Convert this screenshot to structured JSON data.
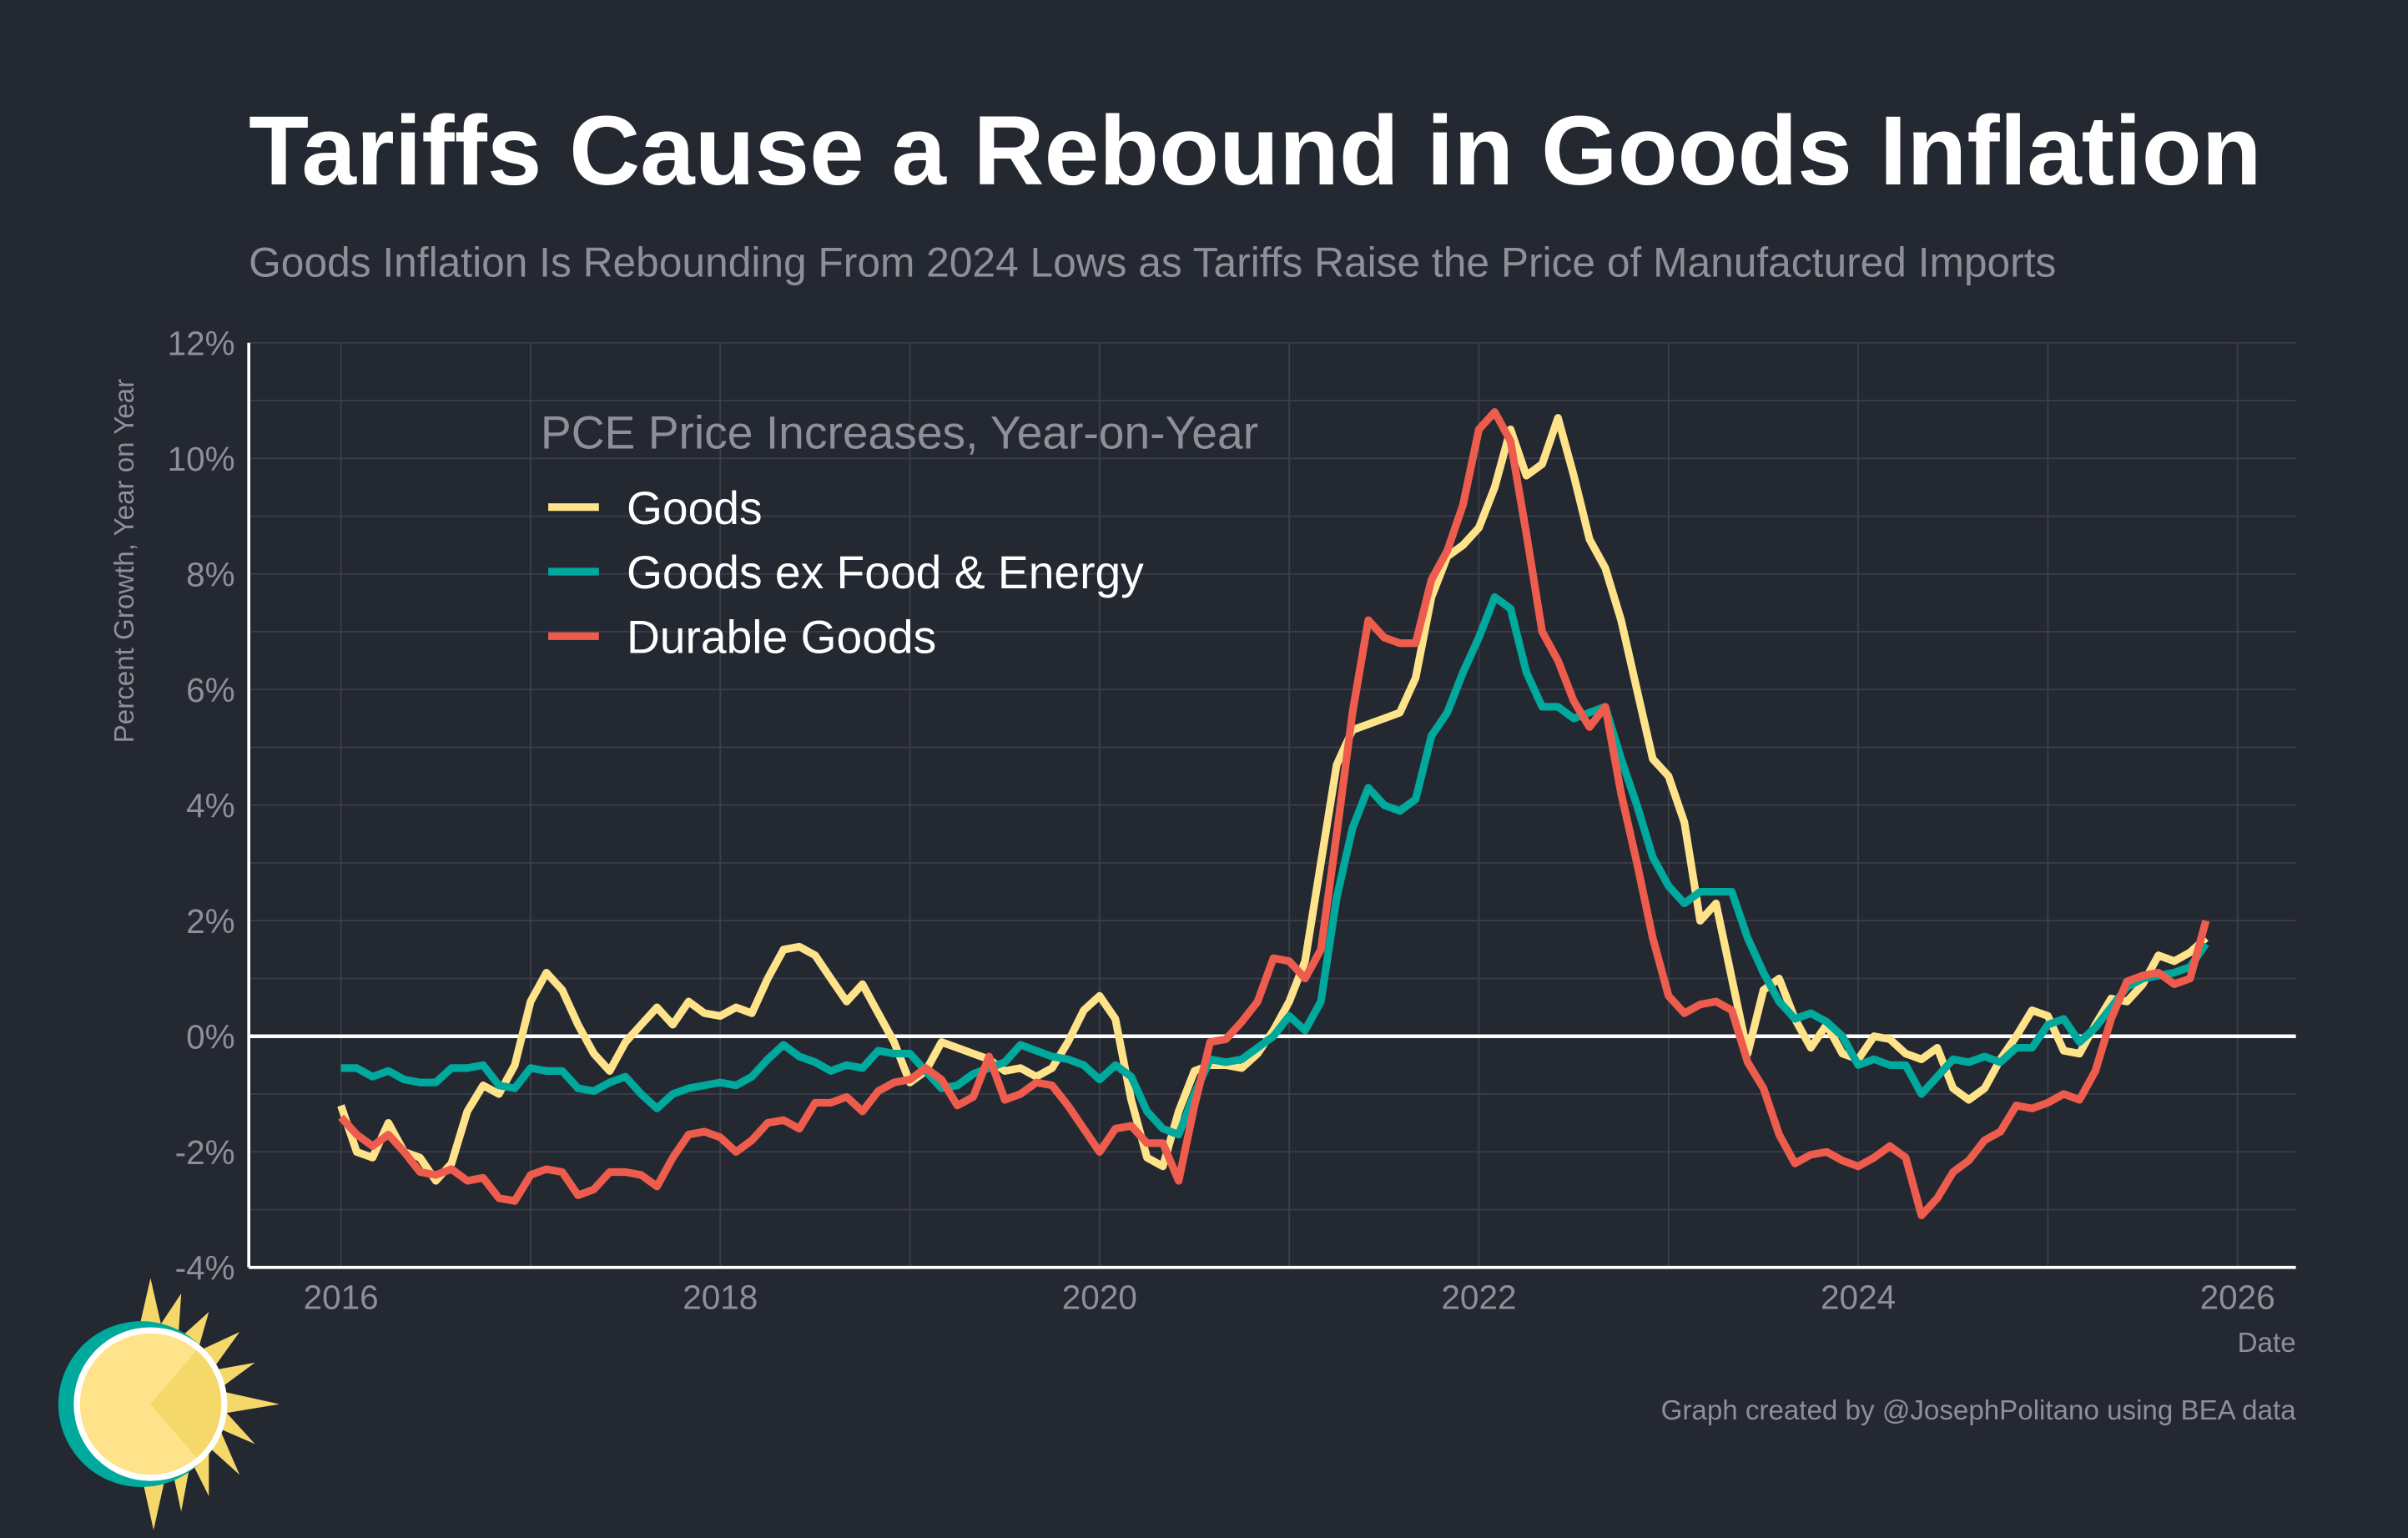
{
  "chart_data": {
    "type": "line",
    "title": "Tariffs Cause a Rebound in Goods Inflation",
    "subtitle": "Goods Inflation Is Rebounding From 2024 Lows as Tariffs Raise the Price of Manufactured Imports",
    "xlabel": "Date",
    "ylabel": "Percent Growth, Year on Year",
    "legend_title": "PCE Price Increases, Year-on-Year",
    "legend_position": "top-left",
    "caption": "Graph created by @JosephPolitano using BEA data",
    "xlim": [
      2015.45,
      2026.3
    ],
    "ylim": [
      -4,
      12
    ],
    "x_ticks": [
      2016,
      2018,
      2020,
      2022,
      2024,
      2026
    ],
    "x_tick_labels": [
      "2016",
      "2018",
      "2020",
      "2022",
      "2024",
      "2026"
    ],
    "y_ticks": [
      -4,
      -2,
      0,
      2,
      4,
      6,
      8,
      10,
      12
    ],
    "y_tick_labels": [
      "-4%",
      "-2%",
      "0%",
      "2%",
      "4%",
      "6%",
      "8%",
      "10%",
      "12%"
    ],
    "grid": true,
    "x_start": 2016.0,
    "x_step_months": 1,
    "series": [
      {
        "name": "Goods",
        "color": "#FFE38A",
        "values": [
          -1.2,
          -2.0,
          -2.1,
          -1.5,
          -2.0,
          -2.1,
          -2.5,
          -2.2,
          -1.3,
          -0.85,
          -1.0,
          -0.5,
          0.6,
          1.1,
          0.8,
          0.2,
          -0.3,
          -0.6,
          -0.1,
          0.2,
          0.5,
          0.2,
          0.6,
          0.4,
          0.35,
          0.5,
          0.4,
          1.0,
          1.5,
          1.55,
          1.4,
          1.0,
          0.6,
          0.9,
          0.4,
          -0.1,
          -0.8,
          -0.6,
          -0.1,
          -0.2,
          -0.3,
          -0.4,
          -0.6,
          -0.55,
          -0.7,
          -0.55,
          -0.1,
          0.45,
          0.7,
          0.3,
          -1.1,
          -2.1,
          -2.25,
          -1.3,
          -0.6,
          -0.5,
          -0.5,
          -0.55,
          -0.3,
          0.1,
          0.6,
          1.3,
          3.0,
          4.7,
          5.3,
          5.4,
          5.5,
          5.6,
          6.2,
          7.6,
          8.3,
          8.5,
          8.8,
          9.5,
          10.5,
          9.7,
          9.9,
          10.7,
          9.7,
          8.6,
          8.1,
          7.2,
          6.0,
          4.8,
          4.5,
          3.7,
          2.0,
          2.3,
          1.0,
          -0.3,
          0.8,
          1.0,
          0.3,
          -0.2,
          0.2,
          -0.3,
          -0.4,
          0.0,
          -0.05,
          -0.3,
          -0.4,
          -0.2,
          -0.9,
          -1.1,
          -0.9,
          -0.4,
          0.0,
          0.45,
          0.35,
          -0.25,
          -0.3,
          0.2,
          0.65,
          0.6,
          0.9,
          1.4,
          1.3,
          1.45,
          1.7
        ]
      },
      {
        "name": "Goods ex Food & Energy",
        "color": "#00A99D",
        "values": [
          -0.55,
          -0.55,
          -0.7,
          -0.6,
          -0.75,
          -0.8,
          -0.8,
          -0.55,
          -0.55,
          -0.5,
          -0.85,
          -0.9,
          -0.55,
          -0.6,
          -0.6,
          -0.9,
          -0.95,
          -0.8,
          -0.7,
          -1.0,
          -1.25,
          -1.0,
          -0.9,
          -0.85,
          -0.8,
          -0.85,
          -0.7,
          -0.4,
          -0.15,
          -0.35,
          -0.45,
          -0.6,
          -0.5,
          -0.55,
          -0.25,
          -0.3,
          -0.3,
          -0.6,
          -0.9,
          -0.85,
          -0.65,
          -0.55,
          -0.45,
          -0.15,
          -0.25,
          -0.35,
          -0.4,
          -0.5,
          -0.75,
          -0.5,
          -0.7,
          -1.3,
          -1.6,
          -1.7,
          -1.0,
          -0.4,
          -0.45,
          -0.4,
          -0.2,
          0.0,
          0.35,
          0.1,
          0.6,
          2.4,
          3.6,
          4.3,
          4.0,
          3.9,
          4.1,
          5.2,
          5.6,
          6.3,
          6.9,
          7.6,
          7.4,
          6.3,
          5.7,
          5.7,
          5.5,
          5.6,
          5.7,
          4.8,
          4.0,
          3.1,
          2.6,
          2.3,
          2.5,
          2.5,
          2.5,
          1.7,
          1.1,
          0.6,
          0.3,
          0.4,
          0.25,
          0.0,
          -0.5,
          -0.4,
          -0.5,
          -0.5,
          -1.0,
          -0.7,
          -0.4,
          -0.45,
          -0.35,
          -0.45,
          -0.2,
          -0.2,
          0.2,
          0.3,
          -0.1,
          0.15,
          0.5,
          0.85,
          1.0,
          1.05,
          1.1,
          1.2,
          1.6
        ]
      },
      {
        "name": "Durable Goods",
        "color": "#EE5C4E",
        "values": [
          -1.4,
          -1.7,
          -1.9,
          -1.7,
          -2.0,
          -2.35,
          -2.4,
          -2.3,
          -2.5,
          -2.45,
          -2.8,
          -2.85,
          -2.4,
          -2.3,
          -2.35,
          -2.75,
          -2.65,
          -2.35,
          -2.35,
          -2.4,
          -2.6,
          -2.1,
          -1.7,
          -1.65,
          -1.75,
          -2.0,
          -1.8,
          -1.5,
          -1.45,
          -1.6,
          -1.15,
          -1.15,
          -1.05,
          -1.3,
          -0.95,
          -0.8,
          -0.75,
          -0.55,
          -0.75,
          -1.2,
          -1.05,
          -0.35,
          -1.1,
          -1.0,
          -0.8,
          -0.85,
          -1.2,
          -1.6,
          -2.0,
          -1.6,
          -1.55,
          -1.85,
          -1.85,
          -2.5,
          -1.2,
          -0.1,
          -0.05,
          0.25,
          0.6,
          1.35,
          1.3,
          1.0,
          1.5,
          3.5,
          5.6,
          7.2,
          6.9,
          6.8,
          6.8,
          7.9,
          8.4,
          9.2,
          10.5,
          10.8,
          10.3,
          8.7,
          7.0,
          6.5,
          5.8,
          5.35,
          5.7,
          4.2,
          3.0,
          1.7,
          0.7,
          0.4,
          0.55,
          0.6,
          0.45,
          -0.45,
          -0.9,
          -1.7,
          -2.2,
          -2.05,
          -2.0,
          -2.15,
          -2.25,
          -2.1,
          -1.9,
          -2.1,
          -3.1,
          -2.8,
          -2.35,
          -2.15,
          -1.8,
          -1.65,
          -1.2,
          -1.25,
          -1.15,
          -1.0,
          -1.1,
          -0.6,
          0.3,
          0.95,
          1.05,
          1.1,
          0.9,
          1.0,
          2.0
        ]
      }
    ]
  },
  "colors": {
    "background": "#242831",
    "grid": "#3b3f49",
    "muted_text": "#8e9099"
  },
  "logo": {
    "icon": "sun-icon"
  }
}
